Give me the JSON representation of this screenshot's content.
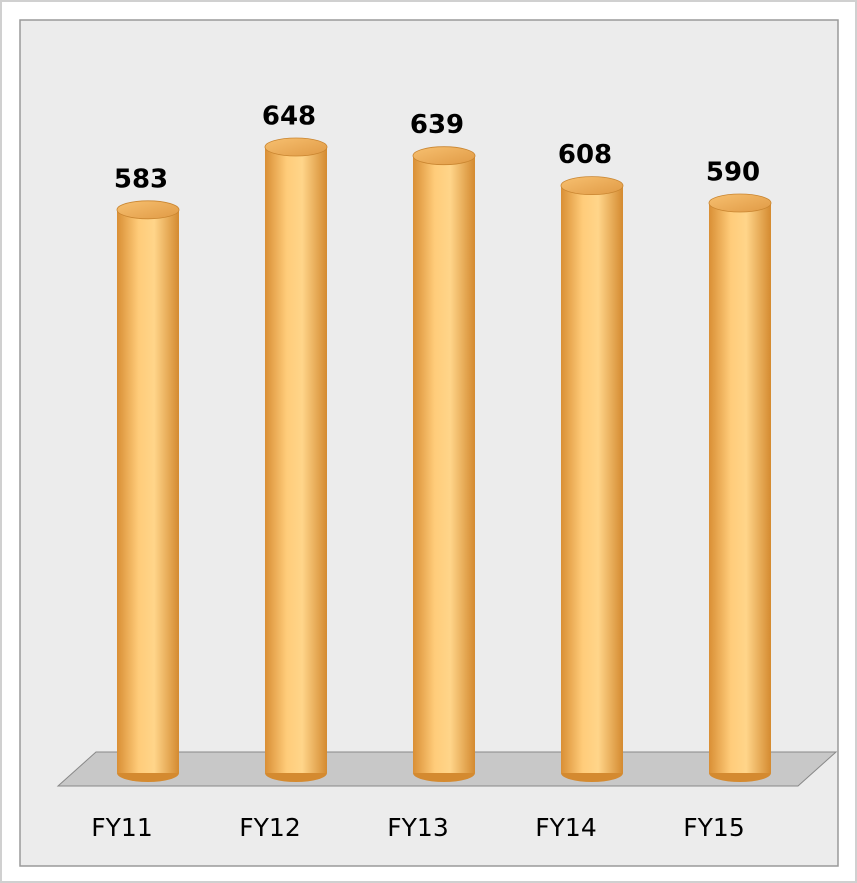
{
  "chart_data": {
    "type": "bar",
    "categories": [
      "FY11",
      "FY12",
      "FY13",
      "FY14",
      "FY15"
    ],
    "values": [
      583,
      648,
      639,
      608,
      590
    ],
    "color": "#f5b65a"
  }
}
